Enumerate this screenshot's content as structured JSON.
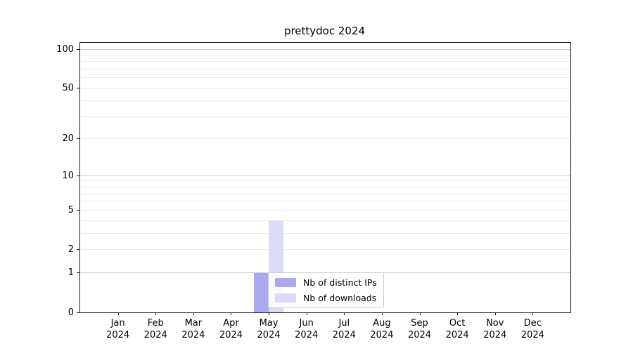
{
  "chart_data": {
    "type": "bar",
    "title": "prettydoc 2024",
    "categories": [
      "Jan",
      "Feb",
      "Mar",
      "Apr",
      "May",
      "Jun",
      "Jul",
      "Aug",
      "Sep",
      "Oct",
      "Nov",
      "Dec"
    ],
    "category_year": "2024",
    "series": [
      {
        "name": "Nb of distinct IPs",
        "color": "#a9a9ee",
        "values": [
          0,
          0,
          0,
          0,
          1,
          0,
          0,
          0,
          0,
          0,
          0,
          0
        ]
      },
      {
        "name": "Nb of downloads",
        "color": "#dbdbf7",
        "values": [
          0,
          0,
          0,
          0,
          4,
          0,
          0,
          0,
          0,
          0,
          0,
          0
        ]
      }
    ],
    "xlabel": "",
    "ylabel": "",
    "yscale": "log1p",
    "ylim": [
      0,
      112
    ],
    "y_labeled_ticks": [
      0,
      1,
      2,
      5,
      10,
      20,
      50,
      100
    ],
    "y_major_gridlines": [
      1,
      10,
      100
    ],
    "y_minor_gridlines": [
      2,
      3,
      4,
      5,
      6,
      7,
      8,
      9,
      20,
      30,
      40,
      50,
      60,
      70,
      80,
      90
    ],
    "grid": "horizontal",
    "legend_position": "lower center",
    "colors": {
      "spine": "#1a1a1a",
      "major_grid": "#cccccc",
      "minor_grid": "#ebebeb",
      "legend_border": "#cccccc"
    }
  }
}
